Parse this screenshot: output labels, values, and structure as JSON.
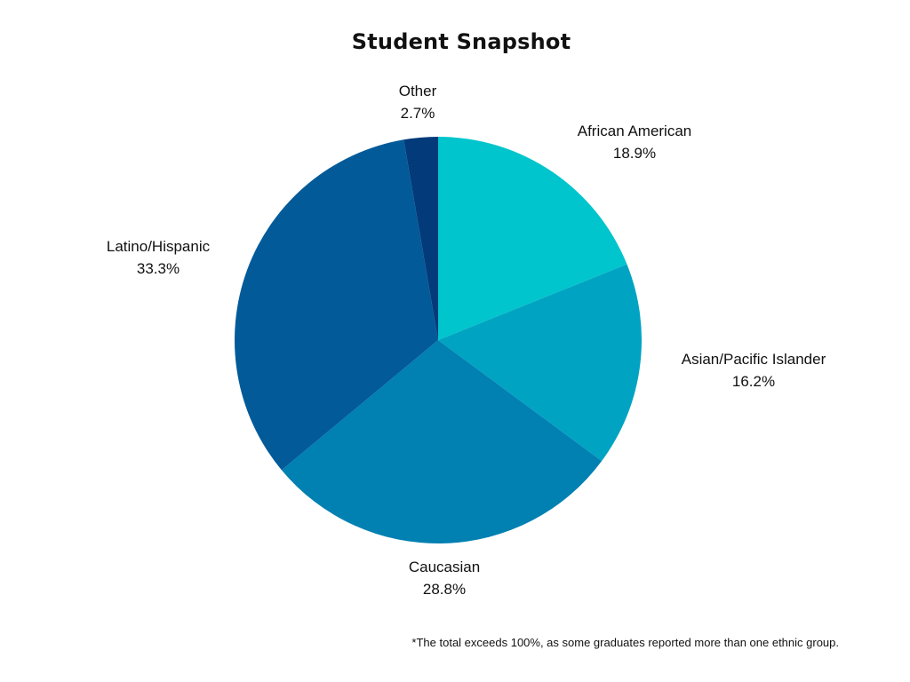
{
  "chart_data": {
    "type": "pie",
    "title": "Student Snapshot",
    "slices": [
      {
        "label": "African American",
        "value": 18.9,
        "value_label": "18.9%",
        "color": "#00C5CC"
      },
      {
        "label": "Asian/Pacific Islander",
        "value": 16.2,
        "value_label": "16.2%",
        "color": "#00A3C2"
      },
      {
        "label": "Caucasian",
        "value": 28.8,
        "value_label": "28.8%",
        "color": "#0180B2"
      },
      {
        "label": "Latino/Hispanic",
        "value": 33.3,
        "value_label": "33.3%",
        "color": "#025A99"
      },
      {
        "label": "Other",
        "value": 2.7,
        "value_label": "2.7%",
        "color": "#033A79"
      }
    ],
    "legend": "none",
    "footnote": "*The total exceeds 100%, as some graduates reported more than one ethnic group."
  }
}
